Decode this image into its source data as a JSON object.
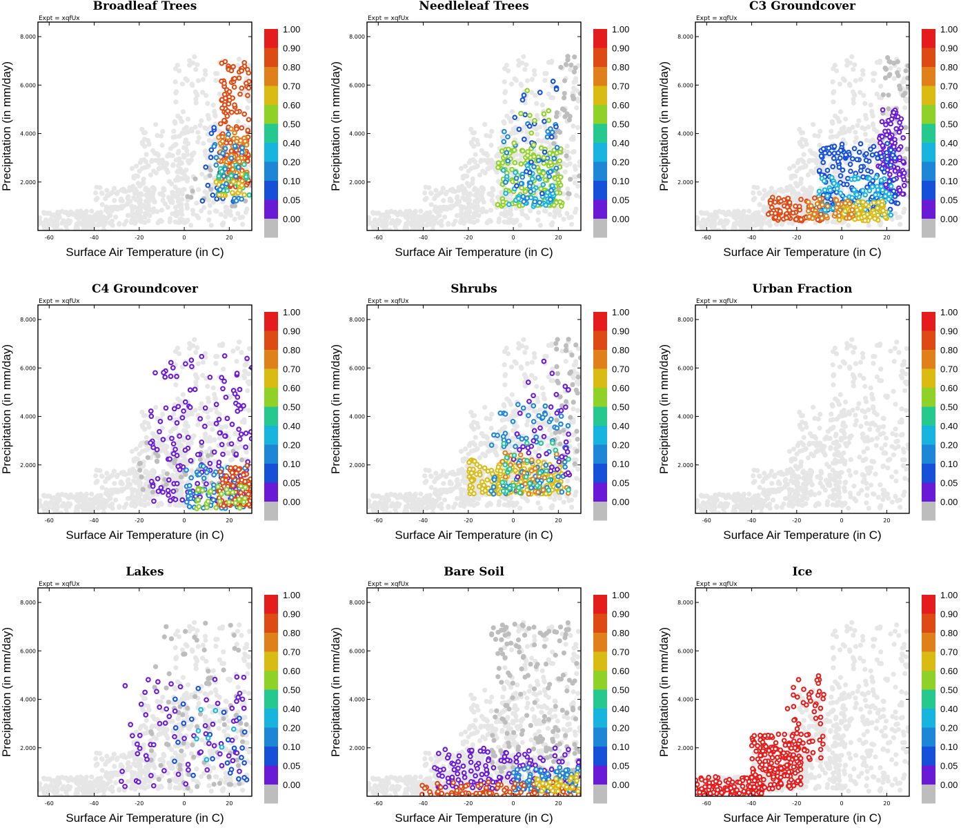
{
  "figure": {
    "expt_label": "Expt = xqfUx",
    "xlabel": "Surface Air Temperature (in C)",
    "ylabel": "Precipitation (in mm/day)",
    "xlim": [
      -65,
      30
    ],
    "ylim": [
      0,
      8.6
    ],
    "xticks": [
      -60,
      -40,
      -20,
      0,
      20
    ],
    "yticks": [
      2,
      4,
      6,
      8
    ],
    "ytick_labels": [
      "2.000",
      "4.000",
      "6.000",
      "8.000"
    ]
  },
  "colorbar": {
    "labels": [
      "1.00",
      "0.90",
      "0.80",
      "0.70",
      "0.60",
      "0.50",
      "0.40",
      "0.20",
      "0.10",
      "0.05",
      "0.00"
    ],
    "colors": [
      "#e51c1c",
      "#de4a14",
      "#e0801a",
      "#d9bb14",
      "#8fd126",
      "#25c88f",
      "#18b4e0",
      "#1d86d6",
      "#1650d8",
      "#6a1ad6",
      "#bdbdbd"
    ]
  },
  "background_color": "#e6e6e6",
  "chart_data": [
    {
      "type": "scatter",
      "title": "Broadleaf Trees",
      "xlabel": "Surface Air Temperature (in C)",
      "ylabel": "Precipitation (in mm/day)",
      "xlim": [
        -65,
        30
      ],
      "ylim": [
        0,
        8.6
      ],
      "clusters": [
        {
          "x": [
            1,
            30
          ],
          "y": [
            1.0,
            2.8
          ],
          "n": 28,
          "v": 0.0
        },
        {
          "x": [
            8,
            22
          ],
          "y": [
            1.2,
            4.6
          ],
          "n": 30,
          "v": 0.12
        },
        {
          "x": [
            16,
            29
          ],
          "y": [
            1.8,
            7.0
          ],
          "n": 150,
          "v": 0.95
        },
        {
          "x": [
            15,
            28
          ],
          "y": [
            2.0,
            4.2
          ],
          "n": 60,
          "v": 0.82
        },
        {
          "x": [
            15,
            29
          ],
          "y": [
            1.4,
            2.8
          ],
          "n": 30,
          "v": 0.55
        },
        {
          "x": [
            14,
            28
          ],
          "y": [
            1.4,
            2.5
          ],
          "n": 20,
          "v": 0.72
        },
        {
          "x": [
            12,
            26
          ],
          "y": [
            1.2,
            4.0
          ],
          "n": 25,
          "v": 0.3
        }
      ]
    },
    {
      "type": "scatter",
      "title": "Needleleaf Trees",
      "xlabel": "Surface Air Temperature (in C)",
      "ylabel": "Precipitation (in mm/day)",
      "xlim": [
        -65,
        30
      ],
      "ylim": [
        0,
        8.6
      ],
      "clusters": [
        {
          "x": [
            18,
            30
          ],
          "y": [
            1.5,
            7.2
          ],
          "n": 40,
          "v": 0.0
        },
        {
          "x": [
            -7,
            22
          ],
          "y": [
            1.0,
            3.4
          ],
          "n": 130,
          "v": 0.68
        },
        {
          "x": [
            -5,
            18
          ],
          "y": [
            1.0,
            2.8
          ],
          "n": 50,
          "v": 0.45
        },
        {
          "x": [
            -5,
            20
          ],
          "y": [
            1.0,
            4.5
          ],
          "n": 40,
          "v": 0.25
        },
        {
          "x": [
            0,
            20
          ],
          "y": [
            1.5,
            6.4
          ],
          "n": 25,
          "v": 0.1
        },
        {
          "x": [
            0,
            20
          ],
          "y": [
            2.0,
            6.0
          ],
          "n": 20,
          "v": 0.6
        }
      ]
    },
    {
      "type": "scatter",
      "title": "C3 Groundcover",
      "xlabel": "Surface Air Temperature (in C)",
      "ylabel": "Precipitation (in mm/day)",
      "xlim": [
        -65,
        30
      ],
      "ylim": [
        0,
        8.6
      ],
      "clusters": [
        {
          "x": [
            18,
            30
          ],
          "y": [
            2.0,
            7.2
          ],
          "n": 50,
          "v": 0.0
        },
        {
          "x": [
            16,
            28
          ],
          "y": [
            1.5,
            5.0
          ],
          "n": 110,
          "v": 0.05
        },
        {
          "x": [
            -10,
            25
          ],
          "y": [
            0.8,
            3.6
          ],
          "n": 180,
          "v": 0.15
        },
        {
          "x": [
            -12,
            22
          ],
          "y": [
            0.6,
            2.2
          ],
          "n": 100,
          "v": 0.4
        },
        {
          "x": [
            -2,
            20
          ],
          "y": [
            0.4,
            1.2
          ],
          "n": 70,
          "v": 0.7
        },
        {
          "x": [
            -33,
            -8
          ],
          "y": [
            0.4,
            1.4
          ],
          "n": 80,
          "v": 0.95
        },
        {
          "x": [
            -15,
            5
          ],
          "y": [
            0.5,
            1.3
          ],
          "n": 40,
          "v": 0.82
        }
      ]
    },
    {
      "type": "scatter",
      "title": "C4 Groundcover",
      "xlabel": "Surface Air Temperature (in C)",
      "ylabel": "Precipitation (in mm/day)",
      "xlim": [
        -65,
        30
      ],
      "ylim": [
        0,
        8.6
      ],
      "clusters": [
        {
          "x": [
            -20,
            26
          ],
          "y": [
            0.8,
            3.0
          ],
          "n": 55,
          "v": 0.0
        },
        {
          "x": [
            -15,
            30
          ],
          "y": [
            0.5,
            6.5
          ],
          "n": 160,
          "v": 0.05
        },
        {
          "x": [
            0,
            30
          ],
          "y": [
            0.2,
            2.0
          ],
          "n": 70,
          "v": 0.3
        },
        {
          "x": [
            15,
            30
          ],
          "y": [
            0.3,
            2.0
          ],
          "n": 70,
          "v": 0.9
        },
        {
          "x": [
            5,
            28
          ],
          "y": [
            0.2,
            1.2
          ],
          "n": 30,
          "v": 0.6
        }
      ]
    },
    {
      "type": "scatter",
      "title": "Shrubs",
      "xlabel": "Surface Air Temperature (in C)",
      "ylabel": "Precipitation (in mm/day)",
      "xlim": [
        -65,
        30
      ],
      "ylim": [
        0,
        8.6
      ],
      "clusters": [
        {
          "x": [
            18,
            30
          ],
          "y": [
            2.0,
            7.2
          ],
          "n": 40,
          "v": 0.0
        },
        {
          "x": [
            -20,
            22
          ],
          "y": [
            0.8,
            2.2
          ],
          "n": 200,
          "v": 0.7
        },
        {
          "x": [
            -10,
            25
          ],
          "y": [
            0.8,
            4.5
          ],
          "n": 90,
          "v": 0.25
        },
        {
          "x": [
            0,
            25
          ],
          "y": [
            1.5,
            6.4
          ],
          "n": 40,
          "v": 0.08
        },
        {
          "x": [
            -5,
            25
          ],
          "y": [
            0.8,
            2.5
          ],
          "n": 30,
          "v": 0.85
        },
        {
          "x": [
            -5,
            25
          ],
          "y": [
            0.8,
            3.0
          ],
          "n": 30,
          "v": 0.5
        }
      ]
    },
    {
      "type": "scatter",
      "title": "Urban Fraction",
      "xlabel": "Surface Air Temperature (in C)",
      "ylabel": "Precipitation (in mm/day)",
      "xlim": [
        -65,
        30
      ],
      "ylim": [
        0,
        8.6
      ],
      "clusters": []
    },
    {
      "type": "scatter",
      "title": "Lakes",
      "xlabel": "Surface Air Temperature (in C)",
      "ylabel": "Precipitation (in mm/day)",
      "xlim": [
        -65,
        30
      ],
      "ylim": [
        0,
        8.6
      ],
      "clusters": [
        {
          "x": [
            -15,
            28
          ],
          "y": [
            0.3,
            7.2
          ],
          "n": 80,
          "v": 0.0
        },
        {
          "x": [
            -33,
            28
          ],
          "y": [
            0.4,
            5.0
          ],
          "n": 70,
          "v": 0.05
        },
        {
          "x": [
            -5,
            28
          ],
          "y": [
            0.6,
            4.5
          ],
          "n": 25,
          "v": 0.15
        },
        {
          "x": [
            5,
            25
          ],
          "y": [
            1.5,
            4.0
          ],
          "n": 8,
          "v": 0.4
        }
      ]
    },
    {
      "type": "scatter",
      "title": "Bare Soil",
      "xlabel": "Surface Air Temperature (in C)",
      "ylabel": "Precipitation (in mm/day)",
      "xlim": [
        -65,
        30
      ],
      "ylim": [
        0,
        8.6
      ],
      "clusters": [
        {
          "x": [
            -10,
            30
          ],
          "y": [
            1.0,
            7.2
          ],
          "n": 170,
          "v": 0.0
        },
        {
          "x": [
            -35,
            30
          ],
          "y": [
            0.3,
            2.0
          ],
          "n": 150,
          "v": 0.05
        },
        {
          "x": [
            0,
            30
          ],
          "y": [
            0.2,
            1.2
          ],
          "n": 110,
          "v": 0.35
        },
        {
          "x": [
            -42,
            30
          ],
          "y": [
            0.0,
            0.6
          ],
          "n": 90,
          "v": 0.95
        },
        {
          "x": [
            10,
            30
          ],
          "y": [
            0.2,
            0.9
          ],
          "n": 40,
          "v": 0.7
        }
      ]
    },
    {
      "type": "scatter",
      "title": "Ice",
      "xlabel": "Surface Air Temperature (in C)",
      "ylabel": "Precipitation (in mm/day)",
      "xlim": [
        -65,
        30
      ],
      "ylim": [
        0,
        8.6
      ],
      "clusters": [
        {
          "x": [
            -65,
            -35
          ],
          "y": [
            0.0,
            0.8
          ],
          "n": 120,
          "v": 1.0
        },
        {
          "x": [
            -40,
            -18
          ],
          "y": [
            0.3,
            2.6
          ],
          "n": 180,
          "v": 1.0
        },
        {
          "x": [
            -25,
            -8
          ],
          "y": [
            1.5,
            5.0
          ],
          "n": 60,
          "v": 1.0
        }
      ]
    }
  ]
}
